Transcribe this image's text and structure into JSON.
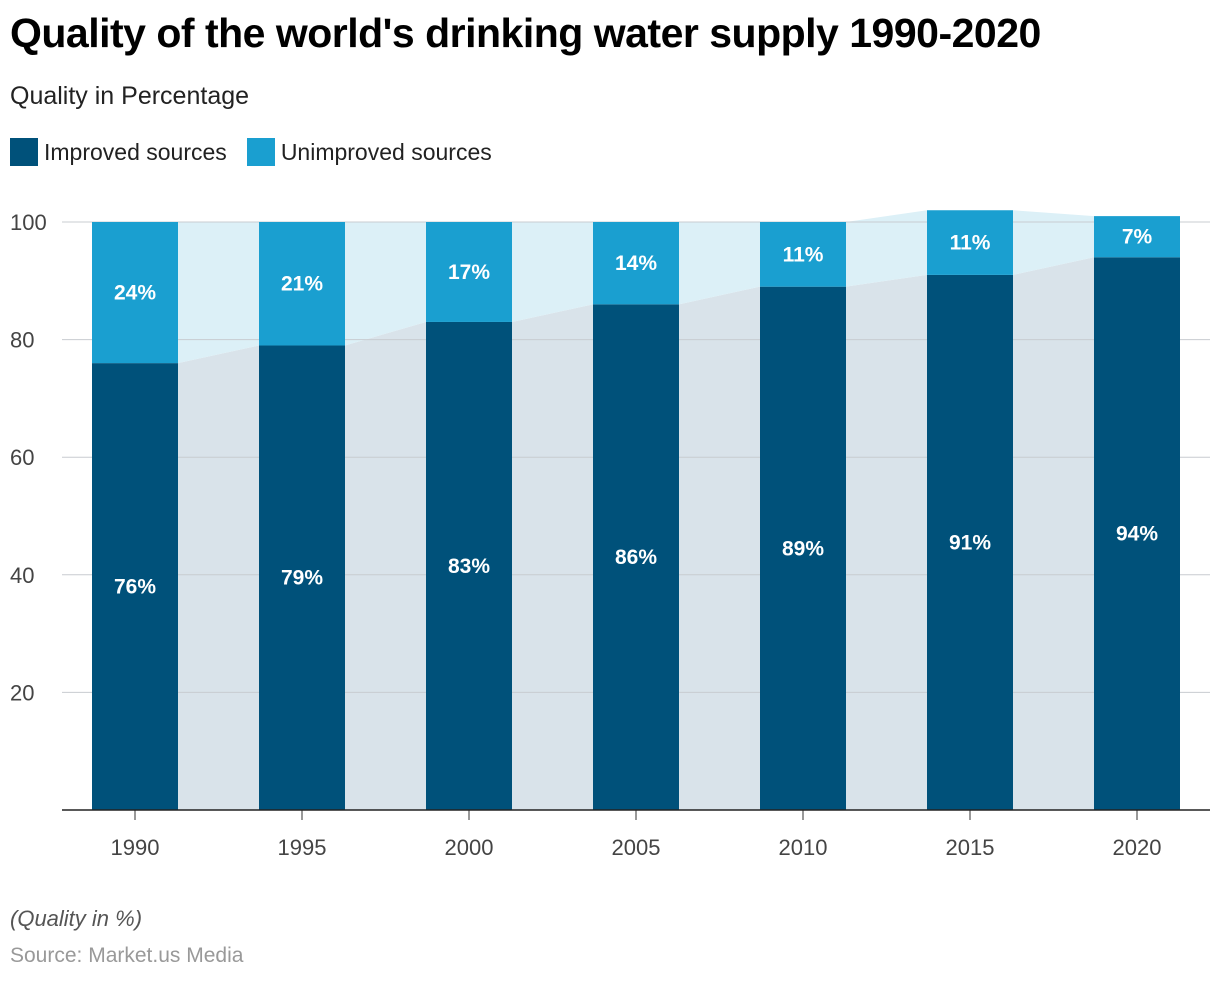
{
  "title": "Quality of the world's drinking water supply 1990-2020",
  "subtitle": "Quality in Percentage",
  "legend": [
    {
      "label": "Improved sources",
      "color": "#00517a"
    },
    {
      "label": "Unimproved sources",
      "color": "#1a9fd0"
    }
  ],
  "note": "(Quality in %)",
  "source": "Source: Market.us Media",
  "chart_data": {
    "type": "bar",
    "stacked": true,
    "categories": [
      "1990",
      "1995",
      "2000",
      "2005",
      "2010",
      "2015",
      "2020"
    ],
    "series": [
      {
        "name": "Improved sources",
        "values": [
          76,
          79,
          83,
          86,
          89,
          91,
          94
        ],
        "labels": [
          "76%",
          "79%",
          "83%",
          "86%",
          "89%",
          "91%",
          "94%"
        ],
        "color": "#00517a"
      },
      {
        "name": "Unimproved sources",
        "values": [
          24,
          21,
          17,
          14,
          11,
          11,
          7
        ],
        "labels": [
          "24%",
          "21%",
          "17%",
          "14%",
          "11%",
          "11%",
          "7%"
        ],
        "color": "#1a9fd0"
      }
    ],
    "yticks": [
      20,
      40,
      60,
      80,
      100
    ],
    "ylim": [
      0,
      100
    ],
    "grid": true,
    "legend_position": "top-left",
    "connector_colors": {
      "improved": "#d9e3ea",
      "unimproved": "#dcf0f7"
    }
  }
}
